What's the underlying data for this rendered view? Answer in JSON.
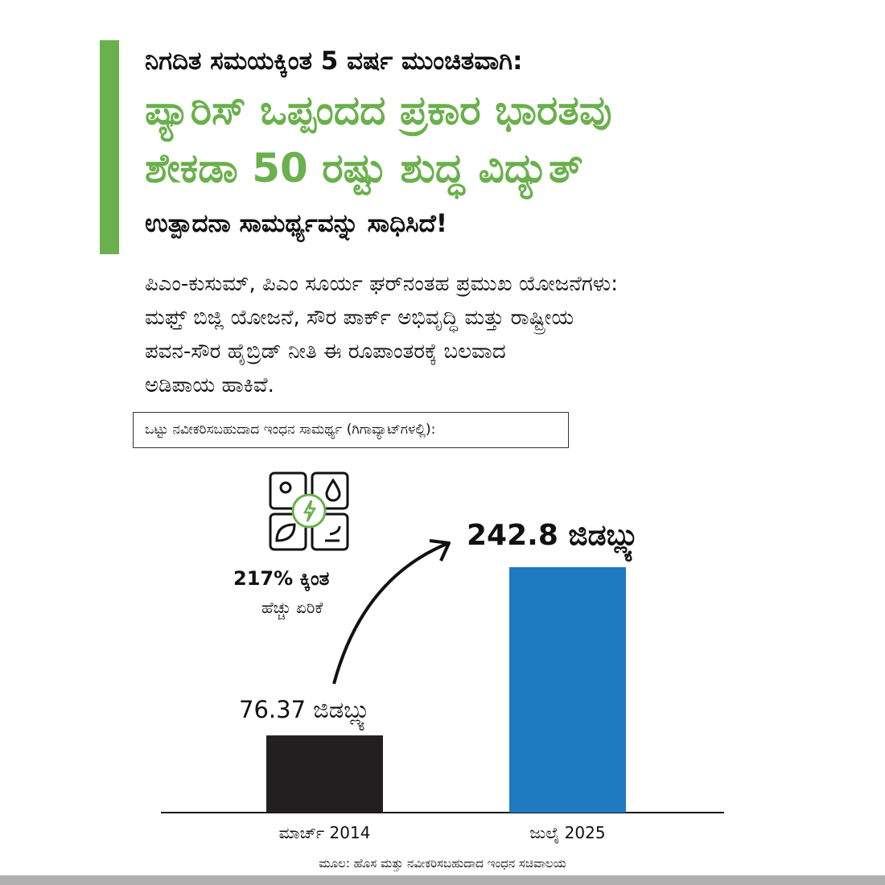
{
  "headline": {
    "line1": "ನಿಗದಿತ ಸಮಯಕ್ಕಿಂತ 5 ವರ್ಷ ಮುಂಚಿತವಾಗಿ:",
    "line2": "ಪ್ಯಾರಿಸ್ ಒಪ್ಪಂದದ ಪ್ರಕಾರ ಭಾರತವು",
    "line3": "ಶೇಕಡಾ 50 ರಷ್ಟು ಶುದ್ಧ ವಿದ್ಯುತ್",
    "line4": "ಉತ್ಪಾದನಾ ಸಾಮರ್ಥ್ಯವನ್ನು ಸಾಧಿಸಿದೆ!"
  },
  "paragraph": [
    "ಪಿಎಂ-ಕುಸುಮ್, ಪಿಎಂ ಸೂರ್ಯ ಘರ್‌ನಂತಹ ಪ್ರಮುಖ ಯೋಜನೆಗಳು:",
    "ಮಫ್ತ್  ಬಿಜ್ಲಿ ಯೋಜನೆ, ಸೌರ ಪಾರ್ಕ್ ಅಭಿವೃದ್ಧಿ ಮತ್ತು ರಾಷ್ಟ್ರೀಯ",
    "ಪವನ-ಸೌರ ಹೈಬ್ರಿಡ್ ನೀತಿ ಈ ರೂಪಾಂತರಕ್ಕೆ ಬಲವಾದ",
    "ಅಡಿಪಾಯ ಹಾಕಿವೆ."
  ],
  "colors": {
    "accent": "#6ab04c",
    "bar_2014": "#231f20",
    "bar_2025": "#1f7bc1"
  },
  "icons": {
    "renewable": "renewable-energy-grid-icon",
    "arrow": "curved-arrow-icon"
  },
  "growth": {
    "percent": "217% ಕ್ಕಿಂತ",
    "label": "ಹೆಚ್ಚು ಏರಿಕೆ"
  },
  "chart_data": {
    "type": "bar",
    "title": "ಒಟ್ಟು ನವೀಕರಿಸಬಹುದಾದ ಇಂಧನ ಸಾಮರ್ಥ್ಯ (ಗಿಗಾವ್ಯಾಟ್‌ಗಳಲ್ಲಿ):",
    "categories": [
      "ಮಾರ್ಚ್ 2014",
      "ಜುಲೈ 2025"
    ],
    "values": [
      76.37,
      242.8
    ],
    "data_labels": [
      "76.37 ಜಿಡಬ್ಲ್ಯು",
      "242.8 ಜಿಡಬ್ಲ್ಯು"
    ],
    "unit": "GW",
    "ylim": [
      0,
      242.8
    ],
    "grid": false,
    "xlabel": "",
    "ylabel": ""
  },
  "source": "ಮೂಲ: ಹೊಸ ಮತ್ತು ನವೀಕರಿಸಬಹುದಾದ ಇಂಧನ ಸಚಿವಾಲಯ"
}
